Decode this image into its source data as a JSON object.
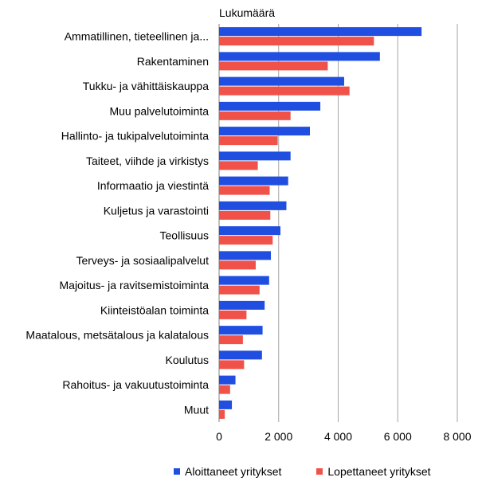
{
  "chart_data": {
    "type": "bar",
    "orientation": "horizontal",
    "ylabel": "Lukumäärä",
    "xlim": [
      0,
      8000
    ],
    "xticks": [
      "0",
      "2 000",
      "4 000",
      "6 000",
      "8 000"
    ],
    "grid": true,
    "legend_position": "bottom",
    "categories": [
      "Ammatillinen, tieteellinen ja...",
      "Rakentaminen",
      "Tukku- ja vähittäiskauppa",
      "Muu palvelutoiminta",
      "Hallinto- ja tukipalvelutoiminta",
      "Taiteet, viihde ja virkistys",
      "Informaatio ja viestintä",
      "Kuljetus ja varastointi",
      "Teollisuus",
      "Terveys- ja sosiaalipalvelut",
      "Majoitus- ja ravitsemistoiminta",
      "Kiinteistöalan toiminta",
      "Maatalous, metsätalous ja kalatalous",
      "Koulutus",
      "Rahoitus- ja vakuutustoiminta",
      "Muut"
    ],
    "series": [
      {
        "name": "Aloittaneet yritykset",
        "color": "#1f4ee0",
        "values": [
          6800,
          5400,
          4200,
          3400,
          3050,
          2400,
          2320,
          2260,
          2060,
          1740,
          1680,
          1530,
          1460,
          1440,
          550,
          430
        ]
      },
      {
        "name": "Lopettaneet yritykset",
        "color": "#f0524a",
        "values": [
          5200,
          3650,
          4380,
          2400,
          1970,
          1300,
          1700,
          1720,
          1800,
          1230,
          1360,
          920,
          800,
          840,
          370,
          190
        ]
      }
    ]
  }
}
